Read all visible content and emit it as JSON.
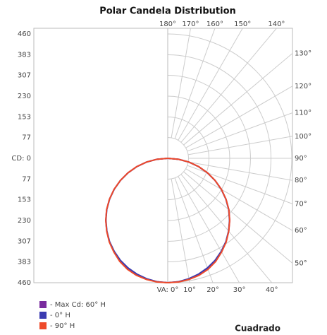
{
  "chart_data": {
    "type": "polar",
    "title": "Polar Candela Distribution",
    "label": "Cuadrado",
    "rlim": [
      0,
      460
    ],
    "rticks": [
      {
        "value": 0,
        "label": "CD: 0"
      },
      77,
      153,
      230,
      307,
      383,
      460
    ],
    "aticks": [
      {
        "value": 0,
        "label": "VA: 0°"
      },
      {
        "value": 10,
        "label": "10°"
      },
      {
        "value": 20,
        "label": "20°"
      },
      {
        "value": 30,
        "label": "30°"
      },
      {
        "value": 40,
        "label": "40°"
      },
      {
        "value": 50,
        "label": "50°"
      },
      {
        "value": 60,
        "label": "60°"
      },
      {
        "value": 70,
        "label": "70°"
      },
      {
        "value": 80,
        "label": "80°"
      },
      {
        "value": 90,
        "label": "90°"
      },
      {
        "value": 100,
        "label": "100°"
      },
      {
        "value": 110,
        "label": "110°"
      },
      {
        "value": 120,
        "label": "120°"
      },
      {
        "value": 130,
        "label": "130°"
      },
      {
        "value": 140,
        "label": "140°"
      },
      {
        "value": 150,
        "label": "150°"
      },
      {
        "value": 160,
        "label": "160°"
      },
      {
        "value": 170,
        "label": "170°"
      },
      {
        "value": 180,
        "label": "180°"
      }
    ],
    "angles": [
      0,
      5,
      10,
      15,
      20,
      25,
      30,
      35,
      40,
      45,
      50,
      55,
      60,
      65,
      70,
      75,
      80,
      85,
      90
    ],
    "series": [
      {
        "name": "- Max Cd: 60° H",
        "color": "#7a2c9e",
        "values": [
          460,
          458,
          453,
          444,
          432,
          417,
          398,
          377,
          352,
          325,
          296,
          264,
          230,
          194,
          157,
          119,
          80,
          40,
          0
        ]
      },
      {
        "name": "- 0° H",
        "color": "#3b3bb0",
        "values": [
          460,
          458,
          452,
          443,
          431,
          416,
          397,
          376,
          351,
          324,
          295,
          263,
          229,
          193,
          156,
          118,
          79,
          40,
          0
        ]
      },
      {
        "name": "- 90° H",
        "color": "#ee4a2a",
        "values": [
          460,
          459,
          455,
          448,
          437,
          421,
          400,
          378,
          352,
          325,
          296,
          264,
          230,
          194,
          157,
          119,
          80,
          40,
          0
        ]
      }
    ]
  }
}
